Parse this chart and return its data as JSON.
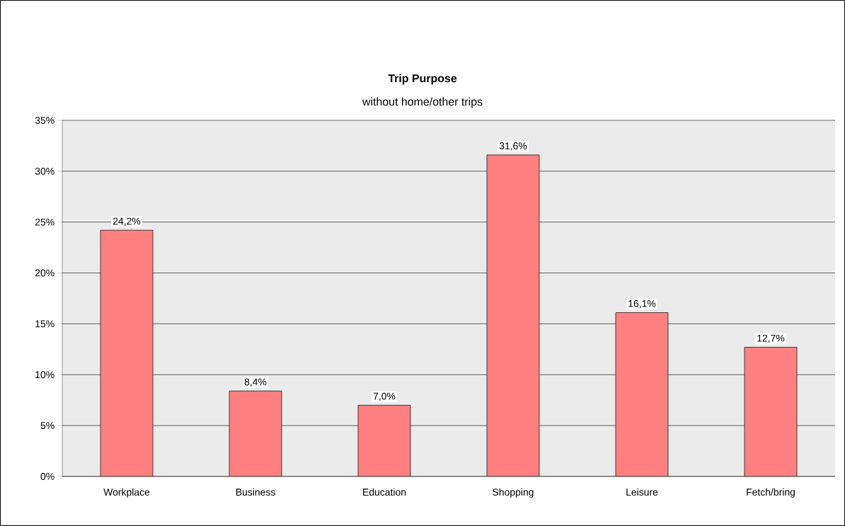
{
  "chart_data": {
    "type": "bar",
    "title": "Trip Purpose",
    "subtitle": "without home/other trips",
    "categories": [
      "Workplace",
      "Business",
      "Education",
      "Shopping",
      "Leisure",
      "Fetch/bring"
    ],
    "values": [
      24.2,
      8.4,
      7.0,
      31.6,
      16.1,
      12.7
    ],
    "value_labels": [
      "24,2%",
      "8,4%",
      "7,0%",
      "31,6%",
      "16,1%",
      "12,7%"
    ],
    "color": "#ff8080",
    "ylim": [
      0,
      35
    ],
    "yticks": [
      {
        "value": 0,
        "label": "0%"
      },
      {
        "value": 5,
        "label": "5%"
      },
      {
        "value": 10,
        "label": "10%"
      },
      {
        "value": 15,
        "label": "15%"
      },
      {
        "value": 20,
        "label": "20%"
      },
      {
        "value": 25,
        "label": "25%"
      },
      {
        "value": 30,
        "label": "30%"
      },
      {
        "value": 35,
        "label": "35%"
      }
    ],
    "grid": "y"
  }
}
